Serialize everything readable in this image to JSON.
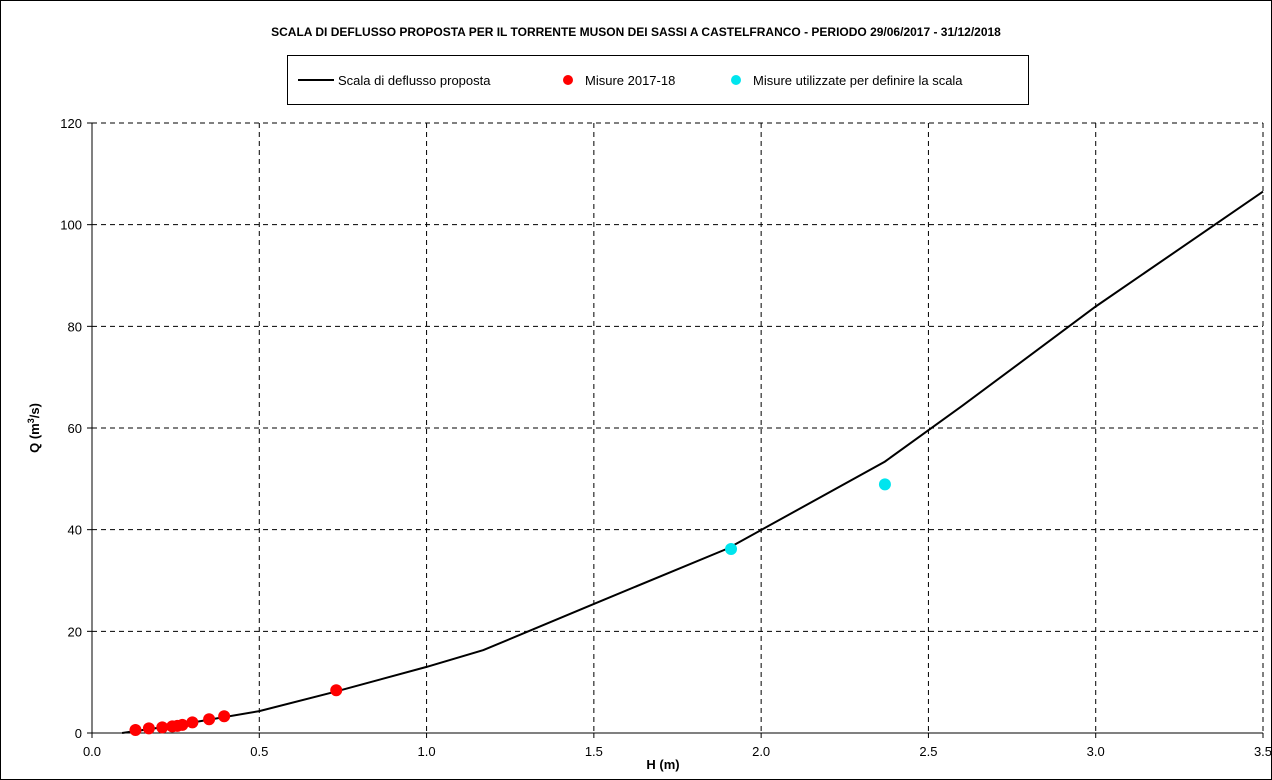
{
  "chart_data": {
    "type": "line",
    "title": "SCALA DI DEFLUSSO PROPOSTA PER IL TORRENTE MUSON DEI SASSI A CASTELFRANCO - PERIODO 29/06/2017 - 31/12/2018",
    "xlabel": "H (m)",
    "ylabel_main": "Q (m",
    "ylabel_sup": "3",
    "ylabel_tail": "/s)",
    "xlim": [
      0,
      3.5
    ],
    "ylim": [
      0,
      120
    ],
    "x_ticks": [
      0,
      0.5,
      1,
      1.5,
      2,
      2.5,
      3,
      3.5
    ],
    "x_tick_labels": [
      "0.0",
      "0.5",
      "1.0",
      "1.5",
      "2.0",
      "2.5",
      "3.0",
      "3.5"
    ],
    "y_ticks": [
      0,
      20,
      40,
      60,
      80,
      100,
      120
    ],
    "y_tick_labels": [
      "0",
      "20",
      "40",
      "60",
      "80",
      "100",
      "120"
    ],
    "grid": true,
    "legend_position": "top-center",
    "series": [
      {
        "name": "Scala di deflusso proposta",
        "kind": "line",
        "color": "#000000",
        "x": [
          0.09,
          0.25,
          0.5,
          0.72,
          1.0,
          1.17,
          1.5,
          1.9,
          2.37,
          2.6,
          3.0,
          3.5
        ],
        "y": [
          0.0,
          1.5,
          4.3,
          8.0,
          13.0,
          16.3,
          25.4,
          36.3,
          53.4,
          64.3,
          83.9,
          106.5
        ]
      },
      {
        "name": "Misure 2017-18",
        "kind": "scatter",
        "color": "#ff0000",
        "x": [
          0.13,
          0.17,
          0.21,
          0.24,
          0.255,
          0.27,
          0.3,
          0.35,
          0.395,
          0.73
        ],
        "y": [
          0.6,
          0.9,
          1.1,
          1.3,
          1.4,
          1.6,
          2.1,
          2.7,
          3.3,
          8.4
        ]
      },
      {
        "name": "Misure utilizzate per definire la scala",
        "kind": "scatter",
        "color": "#00e5ee",
        "x": [
          1.91,
          2.37
        ],
        "y": [
          36.2,
          48.9
        ]
      }
    ]
  }
}
